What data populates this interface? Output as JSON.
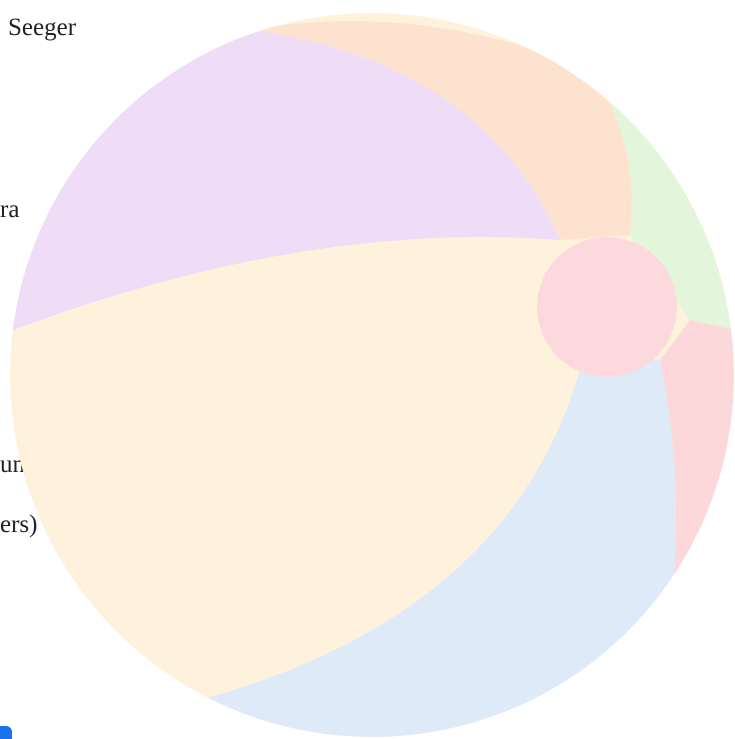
{
  "texts": [
    "Seeger",
    "ra",
    "unt",
    "ers)"
  ]
}
